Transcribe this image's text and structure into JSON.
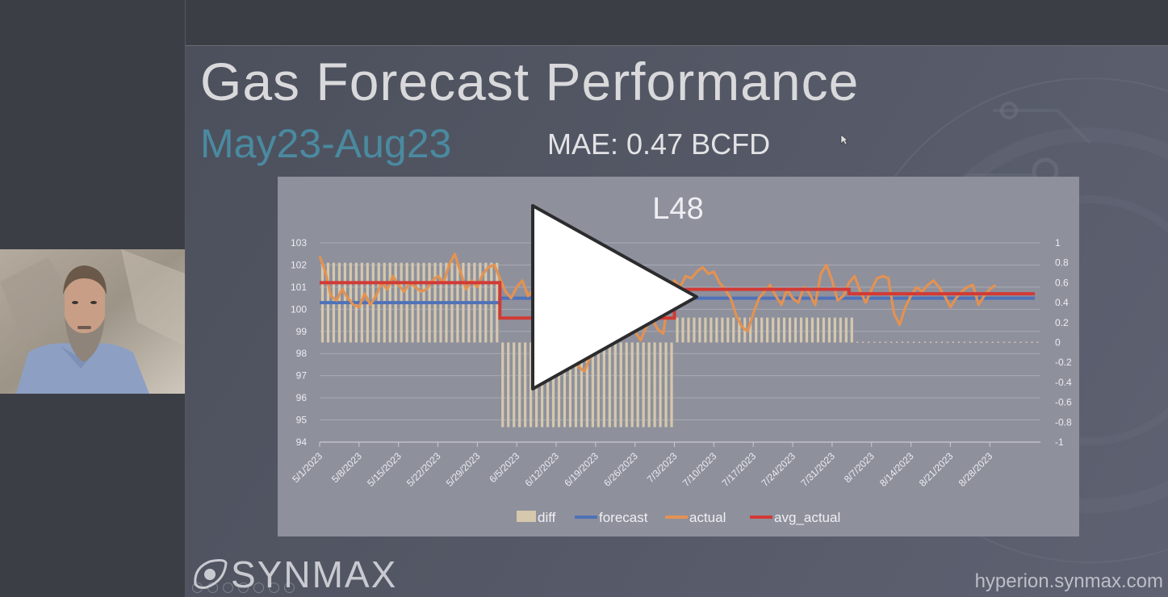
{
  "slide": {
    "title": "Gas Forecast Performance",
    "subtitle": "May23-Aug23",
    "mae": "MAE: 0.47 BCFD",
    "logo_text": "SYNMAX",
    "url": "hyperion.synmax.com"
  },
  "player": {
    "play_label": "Play video"
  },
  "colors": {
    "diff": "#d5c8ad",
    "forecast": "#4f72b8",
    "actual": "#e39252",
    "avg_actual": "#d23a35",
    "subtitle": "#4a8aa0"
  },
  "chart_data": {
    "type": "line",
    "title": "L48",
    "categories": [
      "5/1/2023",
      "5/8/2023",
      "5/15/2023",
      "5/22/2023",
      "5/29/2023",
      "6/5/2023",
      "6/12/2023",
      "6/19/2023",
      "6/26/2023",
      "7/3/2023",
      "7/10/2023",
      "7/17/2023",
      "7/24/2023",
      "7/31/2023",
      "8/7/2023",
      "8/14/2023",
      "8/21/2023",
      "8/28/2023"
    ],
    "ylim": [
      94,
      103
    ],
    "yticks": [
      103,
      102,
      101,
      100,
      99,
      98,
      97,
      96,
      95,
      94
    ],
    "y2lim": [
      -1,
      1
    ],
    "y2ticks": [
      "1",
      "0.8",
      "0.6",
      "0.4",
      "0.2",
      "0",
      "-0.2",
      "-0.4",
      "-0.6",
      "-0.8",
      "-1"
    ],
    "grid": true,
    "legend_position": "bottom",
    "legend": [
      "diff",
      "forecast",
      "actual",
      "avg_actual"
    ],
    "series": [
      {
        "name": "diff",
        "axis": "right",
        "type": "bar",
        "segments": [
          {
            "from": 0,
            "to": 31,
            "value": 0.8
          },
          {
            "from": 32,
            "to": 62,
            "value": -0.85
          },
          {
            "from": 63,
            "to": 94,
            "value": 0.25
          },
          {
            "from": 95,
            "to": 127,
            "value": 0
          }
        ]
      },
      {
        "name": "forecast",
        "axis": "left",
        "type": "step",
        "segments": [
          {
            "from": 0,
            "to": 32,
            "value": 100.3
          },
          {
            "from": 32,
            "to": 127,
            "value": 100.5
          }
        ]
      },
      {
        "name": "avg_actual",
        "axis": "left",
        "type": "step",
        "segments": [
          {
            "from": 0,
            "to": 32,
            "value": 101.2
          },
          {
            "from": 32,
            "to": 63,
            "value": 99.6
          },
          {
            "from": 63,
            "to": 94,
            "value": 100.9
          },
          {
            "from": 94,
            "to": 127,
            "value": 100.7
          }
        ]
      },
      {
        "name": "actual",
        "axis": "left",
        "type": "line",
        "points": [
          [
            0,
            102.4
          ],
          [
            1,
            101.7
          ],
          [
            2,
            100.6
          ],
          [
            3,
            100.4
          ],
          [
            4,
            100.9
          ],
          [
            5,
            100.5
          ],
          [
            6,
            100.2
          ],
          [
            7,
            100.1
          ],
          [
            8,
            100.7
          ],
          [
            9,
            100.2
          ],
          [
            10,
            100.6
          ],
          [
            11,
            101.2
          ],
          [
            12,
            100.9
          ],
          [
            13,
            101.5
          ],
          [
            14,
            101.1
          ],
          [
            15,
            100.8
          ],
          [
            16,
            101.2
          ],
          [
            17,
            101.0
          ],
          [
            18,
            100.8
          ],
          [
            19,
            100.9
          ],
          [
            20,
            101.3
          ],
          [
            21,
            101.5
          ],
          [
            22,
            101.2
          ],
          [
            23,
            102.0
          ],
          [
            24,
            102.5
          ],
          [
            25,
            101.7
          ],
          [
            26,
            100.9
          ],
          [
            27,
            101.3
          ],
          [
            28,
            101.0
          ],
          [
            29,
            101.6
          ],
          [
            30,
            101.9
          ],
          [
            31,
            102.0
          ],
          [
            32,
            101.4
          ],
          [
            33,
            100.8
          ],
          [
            34,
            100.5
          ],
          [
            35,
            101.0
          ],
          [
            36,
            101.3
          ],
          [
            37,
            100.6
          ],
          [
            38,
            100.9
          ],
          [
            39,
            100.2
          ],
          [
            40,
            99.8
          ],
          [
            41,
            99.5
          ],
          [
            42,
            99.1
          ],
          [
            43,
            98.7
          ],
          [
            44,
            98.3
          ],
          [
            45,
            97.9
          ],
          [
            46,
            97.4
          ],
          [
            47,
            97.2
          ],
          [
            48,
            97.8
          ],
          [
            49,
            98.3
          ],
          [
            50,
            98.9
          ],
          [
            51,
            99.2
          ],
          [
            52,
            99.5
          ],
          [
            53,
            99.8
          ],
          [
            54,
            100.1
          ],
          [
            55,
            99.4
          ],
          [
            56,
            99.0
          ],
          [
            57,
            98.6
          ],
          [
            58,
            99.2
          ],
          [
            59,
            99.6
          ],
          [
            60,
            99.1
          ],
          [
            61,
            98.9
          ],
          [
            62,
            100.5
          ],
          [
            63,
            101.3
          ],
          [
            64,
            101.0
          ],
          [
            65,
            101.5
          ],
          [
            66,
            101.4
          ],
          [
            67,
            101.7
          ],
          [
            68,
            101.9
          ],
          [
            69,
            101.6
          ],
          [
            70,
            101.7
          ],
          [
            71,
            101.2
          ],
          [
            72,
            100.9
          ],
          [
            73,
            100.5
          ],
          [
            74,
            99.7
          ],
          [
            75,
            99.2
          ],
          [
            76,
            99.0
          ],
          [
            77,
            99.8
          ],
          [
            78,
            100.5
          ],
          [
            79,
            100.8
          ],
          [
            80,
            101.1
          ],
          [
            81,
            100.6
          ],
          [
            82,
            100.2
          ],
          [
            83,
            100.9
          ],
          [
            84,
            100.5
          ],
          [
            85,
            100.3
          ],
          [
            86,
            101.0
          ],
          [
            87,
            100.7
          ],
          [
            88,
            100.2
          ],
          [
            89,
            101.6
          ],
          [
            90,
            102.0
          ],
          [
            91,
            101.3
          ],
          [
            92,
            100.4
          ],
          [
            93,
            100.6
          ],
          [
            94,
            101.2
          ],
          [
            95,
            101.5
          ],
          [
            96,
            100.8
          ],
          [
            97,
            100.3
          ],
          [
            98,
            100.9
          ],
          [
            99,
            101.4
          ],
          [
            100,
            101.5
          ],
          [
            101,
            101.4
          ],
          [
            102,
            99.8
          ],
          [
            103,
            99.3
          ],
          [
            104,
            100.1
          ],
          [
            105,
            100.6
          ],
          [
            106,
            101.0
          ],
          [
            107,
            100.8
          ],
          [
            108,
            101.1
          ],
          [
            109,
            101.3
          ],
          [
            110,
            101.0
          ],
          [
            111,
            100.6
          ],
          [
            112,
            100.1
          ],
          [
            113,
            100.5
          ],
          [
            114,
            100.8
          ],
          [
            115,
            101.0
          ],
          [
            116,
            101.1
          ],
          [
            117,
            100.2
          ],
          [
            118,
            100.6
          ],
          [
            119,
            100.9
          ],
          [
            120,
            101.1
          ]
        ]
      }
    ]
  }
}
